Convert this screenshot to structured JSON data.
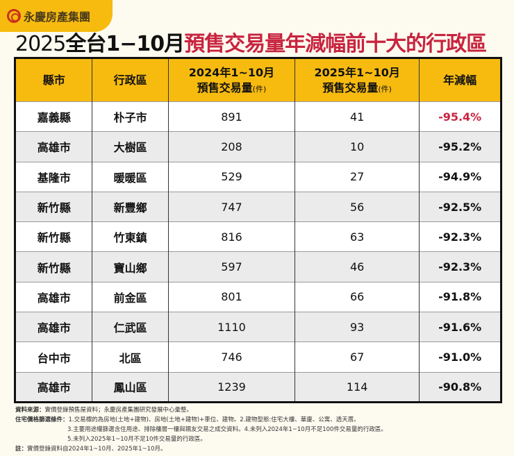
{
  "logo": {
    "text": "永慶房產集團"
  },
  "title": {
    "year": "2025",
    "part1": "全台1−10月",
    "part2": "預售交易量年減幅前十大的行政區"
  },
  "headers": [
    {
      "l1": "縣市",
      "l2": "",
      "unit": ""
    },
    {
      "l1": "行政區",
      "l2": "",
      "unit": ""
    },
    {
      "l1": "2024年1~10月",
      "l2": "預售交易量",
      "unit": "(件)"
    },
    {
      "l1": "2025年1~10月",
      "l2": "預售交易量",
      "unit": "(件)"
    },
    {
      "l1": "年減幅",
      "l2": "",
      "unit": ""
    }
  ],
  "rows": [
    [
      "嘉義縣",
      "朴子市",
      "891",
      "41",
      "-95.4%"
    ],
    [
      "高雄市",
      "大樹區",
      "208",
      "10",
      "-95.2%"
    ],
    [
      "基隆市",
      "暖暖區",
      "529",
      "27",
      "-94.9%"
    ],
    [
      "新竹縣",
      "新豐鄉",
      "747",
      "56",
      "-92.5%"
    ],
    [
      "新竹縣",
      "竹東鎮",
      "816",
      "63",
      "-92.3%"
    ],
    [
      "新竹縣",
      "寶山鄉",
      "597",
      "46",
      "-92.3%"
    ],
    [
      "高雄市",
      "前金區",
      "801",
      "66",
      "-91.8%"
    ],
    [
      "高雄市",
      "仁武區",
      "1110",
      "93",
      "-91.6%"
    ],
    [
      "台中市",
      "北區",
      "746",
      "67",
      "-91.0%"
    ],
    [
      "高雄市",
      "鳳山區",
      "1239",
      "114",
      "-90.8%"
    ]
  ],
  "notes": {
    "source_label": "資料來源：",
    "source": "實價登錄預售屋資料；永慶房產集團研究發展中心彙整。",
    "filter_label": "住宅價格篩選條件：",
    "filter1": "1.交易標的為房地(土地+建物)、房地(土地+建物)+車位、建物。2.建物型態:住宅大樓、華廈、公寓、透天厝。",
    "filter2": "3.主要用途權篩選含住用途、排除樓層一樓與親友交易之成交資料。4.未列入2024年1~10月不足100件交易量的行政區。",
    "filter3": "5.未列入2025年1~10月不足10件交易量的行政區。",
    "note_label": "註：",
    "note": "實價登錄資料自2024年1~10月、2025年1~10月。"
  },
  "colors": {
    "header": "#f7bb10",
    "accent_red": "#c8243f"
  }
}
